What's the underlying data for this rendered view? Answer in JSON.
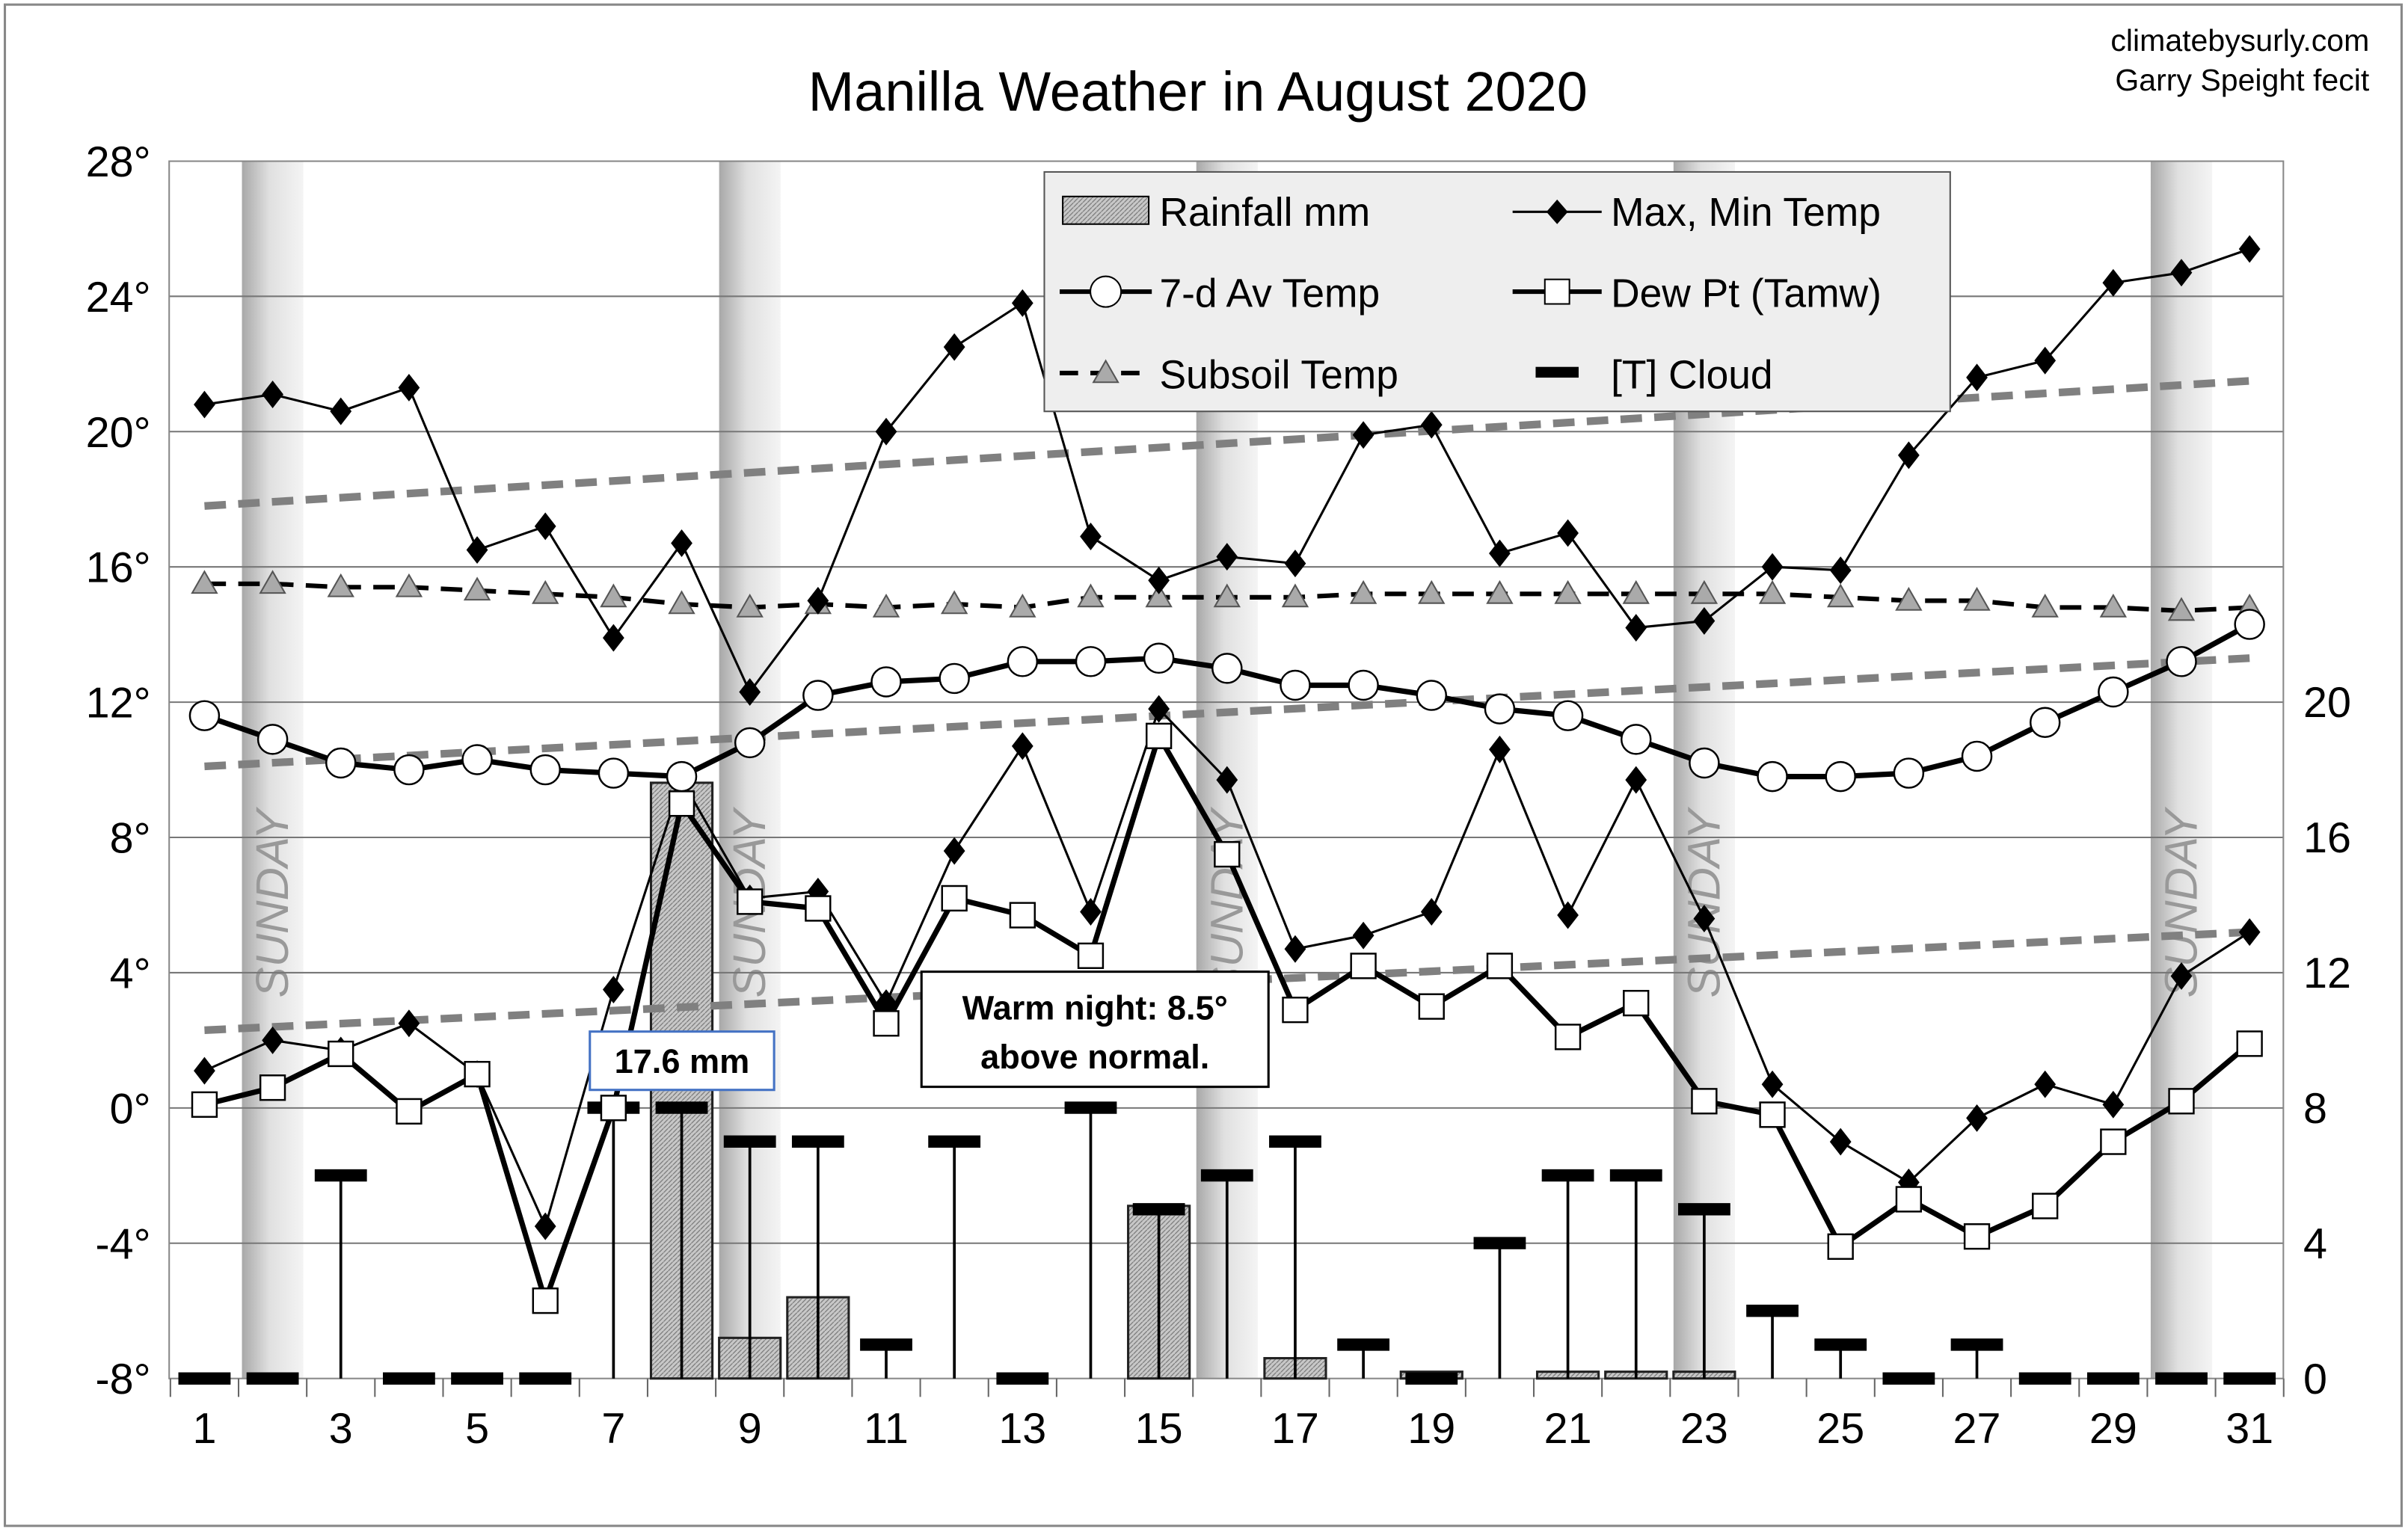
{
  "chart_data": {
    "type": "line",
    "title": "Manilla Weather in August 2020",
    "credits": [
      "climatebysurly.com",
      "Garry Speight fecit"
    ],
    "x": [
      1,
      2,
      3,
      4,
      5,
      6,
      7,
      8,
      9,
      10,
      11,
      12,
      13,
      14,
      15,
      16,
      17,
      18,
      19,
      20,
      21,
      22,
      23,
      24,
      25,
      26,
      27,
      28,
      29,
      30,
      31
    ],
    "x_tick_labels": [
      "1",
      "3",
      "5",
      "7",
      "9",
      "11",
      "13",
      "15",
      "17",
      "19",
      "21",
      "23",
      "25",
      "27",
      "29",
      "31"
    ],
    "y_left": {
      "range": [
        -8,
        28
      ],
      "ticks": [
        "-8°",
        "-4°",
        "0°",
        "4°",
        "8°",
        "12°",
        "16°",
        "20°",
        "24°",
        "28°"
      ],
      "values": [
        -8,
        -4,
        0,
        4,
        8,
        12,
        16,
        20,
        24,
        28
      ]
    },
    "y_right": {
      "range": [
        0,
        36
      ],
      "ticks": [
        "0",
        "4",
        "8",
        "12",
        "16",
        "20"
      ],
      "values": [
        0,
        4,
        8,
        12,
        16,
        20
      ]
    },
    "grid": true,
    "legend_placement": "top-center",
    "legend": [
      "Rainfall mm",
      "Max, Min Temp",
      "7-d Av Temp",
      "Dew Pt (Tamw)",
      "Subsoil Temp",
      "[T] Cloud"
    ],
    "series": [
      {
        "name": "Max Temp",
        "axis": "left",
        "values": [
          20.8,
          21.1,
          20.6,
          21.3,
          16.5,
          17.2,
          13.9,
          16.7,
          12.3,
          15.0,
          20.0,
          22.5,
          23.8,
          16.9,
          15.6,
          16.3,
          16.1,
          19.9,
          20.2,
          16.4,
          17.0,
          14.2,
          14.4,
          16.0,
          15.9,
          19.3,
          21.6,
          22.1,
          24.4,
          24.7,
          25.4
        ]
      },
      {
        "name": "Min Temp",
        "axis": "left",
        "values": [
          1.1,
          2.0,
          1.7,
          2.5,
          1.0,
          -3.5,
          3.5,
          9.7,
          6.2,
          6.4,
          3.1,
          7.6,
          10.7,
          5.8,
          11.8,
          9.7,
          4.7,
          5.1,
          5.8,
          10.6,
          5.7,
          9.7,
          5.6,
          0.7,
          -1.0,
          -2.2,
          -0.3,
          0.7,
          0.1,
          3.9,
          5.2
        ]
      },
      {
        "name": "7-d Av Temp",
        "axis": "left",
        "values": [
          11.6,
          10.9,
          10.2,
          10.0,
          10.3,
          10.0,
          9.9,
          9.8,
          10.8,
          12.2,
          12.6,
          12.7,
          13.2,
          13.2,
          13.3,
          13.0,
          12.5,
          12.5,
          12.2,
          11.8,
          11.6,
          10.9,
          10.2,
          9.8,
          9.8,
          9.9,
          10.4,
          11.4,
          12.3,
          13.2,
          14.3
        ]
      },
      {
        "name": "Dew Pt (Tamw)",
        "axis": "left",
        "values": [
          0.1,
          0.6,
          1.6,
          -0.1,
          1.0,
          -5.7,
          0.0,
          9.0,
          6.1,
          5.9,
          2.5,
          6.2,
          5.7,
          4.5,
          11.0,
          7.5,
          2.9,
          4.2,
          3.0,
          4.2,
          2.1,
          3.1,
          0.2,
          -0.2,
          -4.1,
          -2.7,
          -3.8,
          -2.9,
          -1.0,
          0.2,
          1.9
        ]
      },
      {
        "name": "Subsoil Temp",
        "axis": "left",
        "values": [
          15.5,
          15.5,
          15.4,
          15.4,
          15.3,
          15.2,
          15.1,
          14.9,
          14.8,
          14.9,
          14.8,
          14.9,
          14.8,
          15.1,
          15.1,
          15.1,
          15.1,
          15.2,
          15.2,
          15.2,
          15.2,
          15.2,
          15.2,
          15.2,
          15.1,
          15.0,
          15.0,
          14.8,
          14.8,
          14.7,
          14.8
        ]
      },
      {
        "name": "Rainfall mm",
        "axis": "right",
        "values": [
          0,
          0,
          0,
          0,
          0,
          0,
          0,
          17.6,
          1.2,
          2.4,
          0,
          0,
          0,
          0,
          5.1,
          0,
          0.6,
          0,
          0.2,
          0,
          0.2,
          0.2,
          0.2,
          0,
          0,
          0,
          0,
          0,
          0,
          0,
          0
        ]
      },
      {
        "name": "[T] Cloud",
        "axis": "right",
        "values": [
          0,
          0,
          6,
          0,
          0,
          0,
          8,
          8,
          7,
          7,
          1,
          7,
          0,
          8,
          5,
          6,
          7,
          1,
          0,
          4,
          6,
          6,
          5,
          2,
          1,
          0,
          1,
          0,
          0,
          0,
          0
        ]
      }
    ],
    "normals": [
      {
        "name": "Normal max",
        "start": 17.8,
        "end": 21.5
      },
      {
        "name": "Normal mean",
        "start": 10.1,
        "end": 13.3
      },
      {
        "name": "Normal min",
        "start": 2.3,
        "end": 5.2
      }
    ],
    "sundays": [
      2,
      9,
      16,
      23,
      30
    ],
    "sunday_label": "SUNDAY",
    "annotations": [
      {
        "text": "17.6 mm",
        "day": 8
      },
      {
        "text": "Warm night: 8.5°",
        "text2": "above normal.",
        "day": 15
      }
    ]
  }
}
